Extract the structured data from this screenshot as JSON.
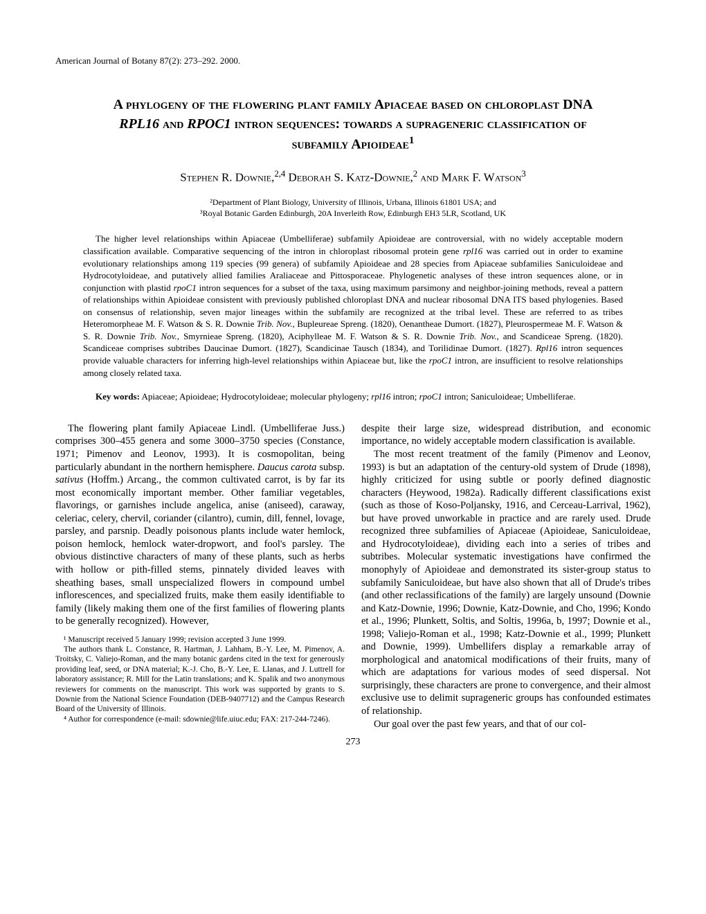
{
  "header": "American Journal of Botany 87(2): 273–292. 2000.",
  "title_html": "A <span class='smallcaps'>phylogeny of the flowering plant family Apiaceae based on chloroplast</span> DNA <span class='italic'>RPL16</span> <span class='smallcaps'>and</span> <span class='italic'>RPOC1</span> <span class='smallcaps'>intron sequences: towards a suprageneric classification of subfamily Apioideae</span><sup>1</sup>",
  "authors_html": "Stephen R. Downie,<sup>2,4</sup> Deborah S. Katz-Downie,<sup>2</sup> and Mark F. Watson<sup>3</sup>",
  "affil1": "²Department of Plant Biology, University of Illinois, Urbana, Illinois 61801 USA; and",
  "affil2": "³Royal Botanic Garden Edinburgh, 20A Inverleith Row, Edinburgh EH3 5LR, Scotland, UK",
  "abstract_html": "The higher level relationships within Apiaceae (Umbelliferae) subfamily Apioideae are controversial, with no widely acceptable modern classification available. Comparative sequencing of the intron in chloroplast ribosomal protein gene <span class='italic'>rpl16</span> was carried out in order to examine evolutionary relationships among 119 species (99 genera) of subfamily Apioideae and 28 species from Apiaceae subfamilies Saniculoideae and Hydrocotyloideae, and putatively allied families Araliaceae and Pittosporaceae. Phylogenetic analyses of these intron sequences alone, or in conjunction with plastid <span class='italic'>rpoC1</span> intron sequences for a subset of the taxa, using maximum parsimony and neighbor-joining methods, reveal a pattern of relationships within Apioideae consistent with previously published chloroplast DNA and nuclear ribosomal DNA ITS based phylogenies. Based on consensus of relationship, seven major lineages within the subfamily are recognized at the tribal level. These are referred to as tribes Heteromorpheae M. F. Watson & S. R. Downie <span class='italic'>Trib. Nov.</span>, Bupleureae Spreng. (1820), Oenantheae Dumort. (1827), Pleurospermeae M. F. Watson & S. R. Downie <span class='italic'>Trib. Nov.</span>, Smyrnieae Spreng. (1820), Aciphylleae M. F. Watson & S. R. Downie <span class='italic'>Trib. Nov.</span>, and Scandiceae Spreng. (1820). Scandiceae comprises subtribes Daucinae Dumort. (1827), Scandicinae Tausch (1834), and Torilidinae Dumort. (1827). <span class='italic'>Rpl16</span> intron sequences provide valuable characters for inferring high-level relationships within Apiaceae but, like the <span class='italic'>rpoC1</span> intron, are insufficient to resolve relationships among closely related taxa.",
  "keywords_label": "Key words:",
  "keywords_text_html": "Apiaceae; Apioideae; Hydrocotyloideae; molecular phylogeny; <span class='italic'>rpl16</span> intron; <span class='italic'>rpoC1</span> intron; Saniculoideae; Umbelliferae.",
  "body_para1_html": "The flowering plant family Apiaceae Lindl. (Umbelliferae Juss.) comprises 300–455 genera and some 3000–3750 species (Constance, 1971; Pimenov and Leonov, 1993). It is cosmopolitan, being particularly abundant in the northern hemisphere. <span class='italic'>Daucus carota</span> subsp. <span class='italic'>sativus</span> (Hoffm.) Arcang., the common cultivated carrot, is by far its most economically important member. Other familiar vegetables, flavorings, or garnishes include angelica, anise (aniseed), caraway, celeriac, celery, chervil, coriander (cilantro), cumin, dill, fennel, lovage, parsley, and parsnip. Deadly poisonous plants include water hemlock, poison hemlock, hemlock water-dropwort, and fool's parsley. The obvious distinctive characters of many of these plants, such as herbs with hollow or pith-filled stems, pinnately divided leaves with sheathing bases, small unspecialized flowers in compound umbel inflorescences, and specialized fruits, make them easily identifiable to family (likely making them one of the first families of flowering plants to be generally recognized). However,",
  "body_para2": "despite their large size, widespread distribution, and economic importance, no widely acceptable modern classification is available.",
  "body_para3": "The most recent treatment of the family (Pimenov and Leonov, 1993) is but an adaptation of the century-old system of Drude (1898), highly criticized for using subtle or poorly defined diagnostic characters (Heywood, 1982a). Radically different classifications exist (such as those of Koso-Poljansky, 1916, and Cerceau-Larrival, 1962), but have proved unworkable in practice and are rarely used. Drude recognized three subfamilies of Apiaceae (Apioideae, Saniculoideae, and Hydrocotyloideae), dividing each into a series of tribes and subtribes. Molecular systematic investigations have confirmed the monophyly of Apioideae and demonstrated its sister-group status to subfamily Saniculoideae, but have also shown that all of Drude's tribes (and other reclassifications of the family) are largely unsound (Downie and Katz-Downie, 1996; Downie, Katz-Downie, and Cho, 1996; Kondo et al., 1996; Plunkett, Soltis, and Soltis, 1996a, b, 1997; Downie et al., 1998; Valiejo-Roman et al., 1998; Katz-Downie et al., 1999; Plunkett and Downie, 1999). Umbellifers display a remarkable array of morphological and anatomical modifications of their fruits, many of which are adaptations for various modes of seed dispersal. Not surprisingly, these characters are prone to convergence, and their almost exclusive use to delimit suprageneric groups has confounded estimates of relationship.",
  "body_para4": "Our goal over the past few years, and that of our col-",
  "footnote1": "¹ Manuscript received 5 January 1999; revision accepted 3 June 1999.",
  "footnote2": "The authors thank L. Constance, R. Hartman, J. Lahham, B.-Y. Lee, M. Pimenov, A. Troitsky, C. Valiejo-Roman, and the many botanic gardens cited in the text for generously providing leaf, seed, or DNA material; K.-J. Cho, B.-Y. Lee, E. Llanas, and J. Luttrell for laboratory assistance; R. Mill for the Latin translations; and K. Spalik and two anonymous reviewers for comments on the manuscript. This work was supported by grants to S. Downie from the National Science Foundation (DEB-9407712) and the Campus Research Board of the University of Illinois.",
  "footnote3": "⁴ Author for correspondence (e-mail: sdownie@life.uiuc.edu; FAX: 217-244-7246).",
  "page_number": "273"
}
